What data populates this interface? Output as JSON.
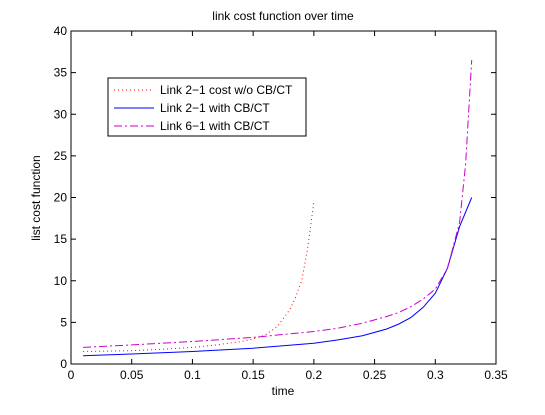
{
  "chart_data": {
    "type": "line",
    "title": "link cost function over time",
    "xlabel": "time",
    "ylabel": "list cost function",
    "xlim": [
      0,
      0.35
    ],
    "ylim": [
      0,
      40
    ],
    "xticks": [
      "0",
      "0.05",
      "0.1",
      "0.15",
      "0.2",
      "0.25",
      "0.3",
      "0.35"
    ],
    "yticks": [
      "0",
      "5",
      "10",
      "15",
      "20",
      "25",
      "30",
      "35",
      "40"
    ],
    "grid": false,
    "legend_position": "top-left",
    "series": [
      {
        "name": "Link 2−1 cost w/o CB/CT",
        "color": "#ff0000",
        "style": "dotted",
        "x": [
          0.01,
          0.05,
          0.08,
          0.1,
          0.12,
          0.14,
          0.15,
          0.16,
          0.17,
          0.18,
          0.185,
          0.19,
          0.195,
          0.2
        ],
        "y": [
          1.5,
          1.6,
          1.8,
          2.0,
          2.3,
          2.7,
          3.0,
          3.5,
          4.5,
          6.5,
          8.0,
          10.0,
          14.0,
          19.5
        ]
      },
      {
        "name": "Link 2−1 with CB/CT",
        "color": "#0000ff",
        "style": "solid",
        "x": [
          0.01,
          0.05,
          0.1,
          0.15,
          0.2,
          0.22,
          0.24,
          0.26,
          0.27,
          0.28,
          0.29,
          0.3,
          0.31,
          0.32,
          0.33
        ],
        "y": [
          1.0,
          1.2,
          1.5,
          1.9,
          2.5,
          2.9,
          3.4,
          4.2,
          4.8,
          5.6,
          6.8,
          8.5,
          11.5,
          16.5,
          20.0
        ]
      },
      {
        "name": "Link 6−1 with CB/CT",
        "color": "#cc00cc",
        "style": "dashdot",
        "x": [
          0.01,
          0.05,
          0.1,
          0.15,
          0.2,
          0.22,
          0.24,
          0.26,
          0.27,
          0.28,
          0.29,
          0.3,
          0.31,
          0.32,
          0.325,
          0.33
        ],
        "y": [
          2.0,
          2.3,
          2.7,
          3.2,
          3.9,
          4.3,
          4.9,
          5.7,
          6.2,
          6.9,
          7.8,
          9.0,
          11.5,
          17.0,
          24.0,
          36.5
        ]
      }
    ]
  }
}
